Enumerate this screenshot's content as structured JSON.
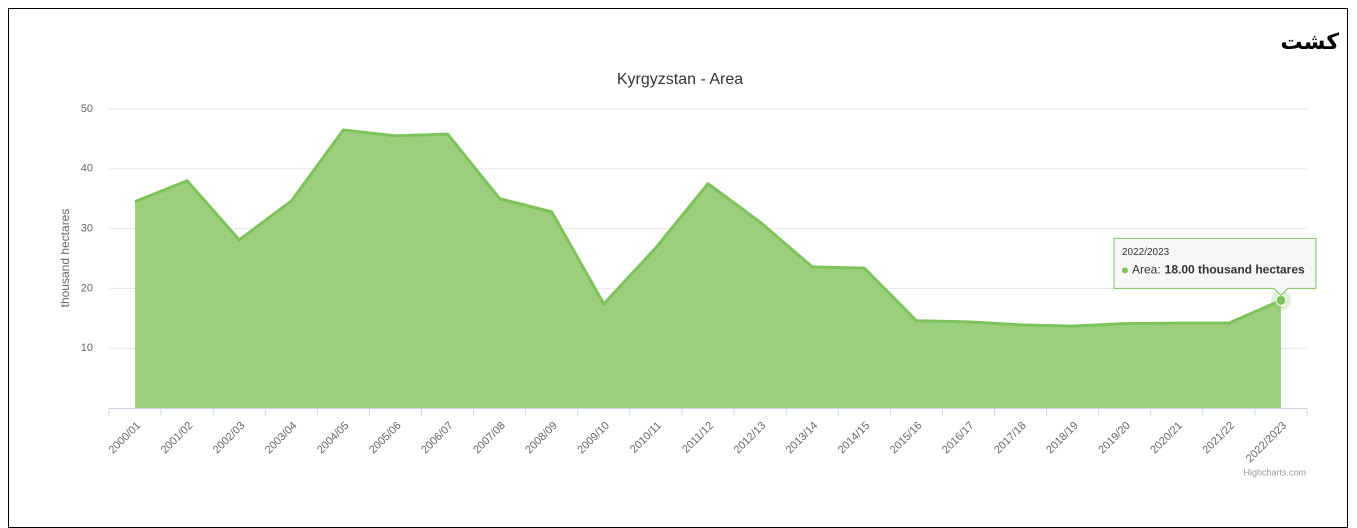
{
  "page_title": "کشت",
  "chart_data": {
    "type": "area",
    "title": "Kyrgyzstan - Area",
    "y_label": "thousand hectares",
    "categories": [
      "2000/01",
      "2001/02",
      "2002/03",
      "2003/04",
      "2004/05",
      "2005/06",
      "2006/07",
      "2007/08",
      "2008/09",
      "2009/10",
      "2010/11",
      "2011/12",
      "2012/13",
      "2013/14",
      "2014/15",
      "2015/16",
      "2016/17",
      "2017/18",
      "2018/19",
      "2019/20",
      "2020/21",
      "2021/22",
      "2022/2023"
    ],
    "series": [
      {
        "name": "Area",
        "color": "#7cc35a",
        "fill": "#9ccf7c",
        "values": [
          34.5,
          38.0,
          28.1,
          34.6,
          46.5,
          45.5,
          45.8,
          35.0,
          32.8,
          17.4,
          26.8,
          37.5,
          31.1,
          23.6,
          23.4,
          14.6,
          14.4,
          13.9,
          13.7,
          14.1,
          14.2,
          14.2,
          18.0
        ]
      }
    ],
    "ylim": [
      0,
      50
    ],
    "yticks": [
      10,
      20,
      30,
      40,
      50
    ],
    "grid": true,
    "tooltip": {
      "series_label": "Area:",
      "value_label": "18.00 thousand hectares"
    },
    "credits": "Highcharts.com"
  }
}
